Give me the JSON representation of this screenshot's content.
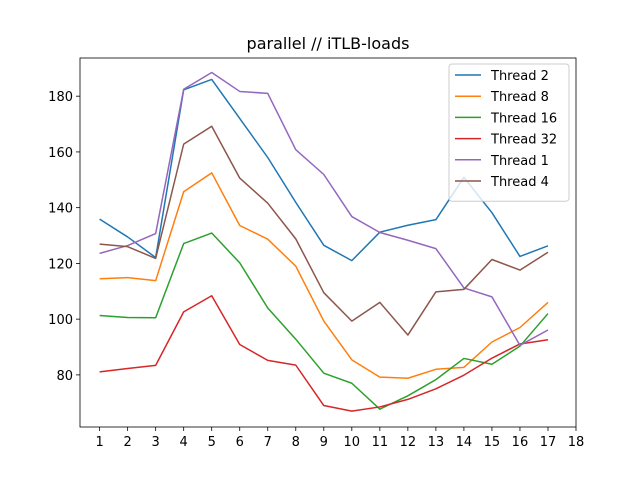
{
  "chart_data": {
    "type": "line",
    "title": "parallel // iTLB-loads",
    "xlabel": "",
    "ylabel": "",
    "x": [
      1,
      2,
      3,
      4,
      5,
      6,
      7,
      8,
      9,
      10,
      11,
      12,
      13,
      14,
      15,
      16,
      17
    ],
    "xticks": [
      "1",
      "2",
      "3",
      "4",
      "5",
      "6",
      "7",
      "8",
      "9",
      "10",
      "11",
      "12",
      "13",
      "14",
      "15",
      "16",
      "17",
      "18"
    ],
    "xlim": [
      0.3,
      18
    ],
    "yticks": [
      "80",
      "100",
      "120",
      "140",
      "160",
      "180"
    ],
    "ylim": [
      61.3,
      193.7
    ],
    "grid": false,
    "legend_position": "top-right",
    "series": [
      {
        "name": "Thread 2",
        "color": "#1f77b4",
        "values": [
          135.9,
          129.5,
          122.1,
          182.3,
          186.0,
          172.0,
          158.0,
          141.9,
          126.5,
          121.0,
          131.2,
          133.7,
          135.7,
          150.9,
          138.2,
          122.5,
          126.3
        ]
      },
      {
        "name": "Thread 8",
        "color": "#ff7f0e",
        "values": [
          114.5,
          114.9,
          113.8,
          145.7,
          152.5,
          133.6,
          128.7,
          119.0,
          99.3,
          85.4,
          79.2,
          78.8,
          82.0,
          82.7,
          91.8,
          97.0,
          106.0
        ]
      },
      {
        "name": "Thread 16",
        "color": "#2ca02c",
        "values": [
          101.3,
          100.6,
          100.5,
          127.1,
          130.9,
          120.2,
          104.0,
          92.8,
          80.6,
          77.0,
          67.7,
          72.5,
          78.3,
          85.9,
          83.8,
          90.3,
          102.0
        ]
      },
      {
        "name": "Thread 32",
        "color": "#d62728",
        "values": [
          81.1,
          82.3,
          83.4,
          102.6,
          108.4,
          90.9,
          85.2,
          83.5,
          69.0,
          67.0,
          68.5,
          71.2,
          75.0,
          79.9,
          86.0,
          91.1,
          92.6
        ]
      },
      {
        "name": "Thread 1",
        "color": "#9467bd",
        "values": [
          123.6,
          126.4,
          130.7,
          182.5,
          188.5,
          181.7,
          181.0,
          160.8,
          151.9,
          136.8,
          131.1,
          128.3,
          125.3,
          111.2,
          108.0,
          90.6,
          96.1
        ]
      },
      {
        "name": "Thread 4",
        "color": "#8c564b",
        "values": [
          126.9,
          126.0,
          121.8,
          162.8,
          169.2,
          150.6,
          141.6,
          128.8,
          109.5,
          99.3,
          106.0,
          94.3,
          109.8,
          110.7,
          121.4,
          117.6,
          124.0
        ]
      }
    ]
  }
}
